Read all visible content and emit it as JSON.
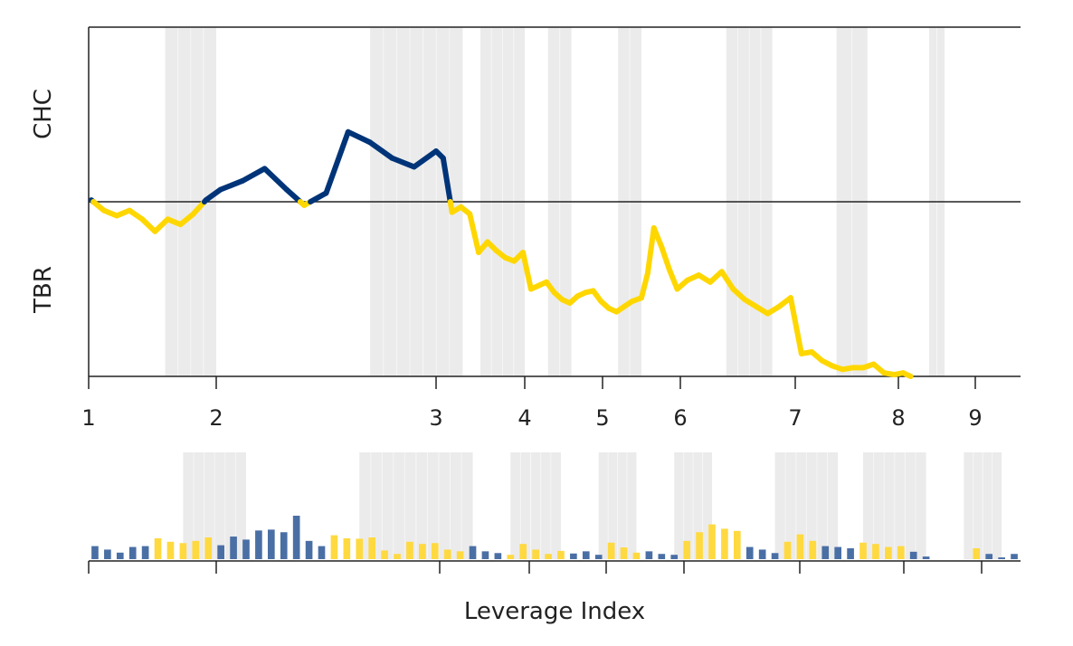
{
  "chart_data": [
    {
      "type": "line",
      "title": "",
      "xlabel": "",
      "y_category_labels": {
        "upper": "CHC",
        "lower": "TBR"
      },
      "x_ticks": [
        "1",
        "2",
        "3",
        "4",
        "5",
        "6",
        "7",
        "8",
        "9"
      ],
      "xlim": [
        1,
        9.45
      ],
      "ylim": [
        -1,
        1
      ],
      "baseline": 0,
      "grid": false,
      "legend": "none",
      "colors": {
        "above": "#003478",
        "below": "#FFD700",
        "shade": "#EBEBEB",
        "axis": "#222222"
      },
      "shaded_bands": [
        [
          1.6,
          2.0
        ],
        [
          2.7,
          3.3
        ],
        [
          3.5,
          4.0
        ],
        [
          4.3,
          4.6
        ],
        [
          5.2,
          5.5
        ],
        [
          6.4,
          6.8
        ],
        [
          7.4,
          7.7
        ],
        [
          8.4,
          8.6
        ]
      ],
      "series": [
        {
          "values": [
            [
              1.02,
              0.01
            ],
            [
              1.12,
              -0.05
            ],
            [
              1.22,
              -0.08
            ],
            [
              1.32,
              -0.05
            ],
            [
              1.42,
              -0.1
            ],
            [
              1.52,
              -0.17
            ],
            [
              1.62,
              -0.1
            ],
            [
              1.72,
              -0.13
            ],
            [
              1.82,
              -0.07
            ],
            [
              1.92,
              0.01
            ],
            [
              2.02,
              0.07
            ],
            [
              2.12,
              0.12
            ],
            [
              2.22,
              0.19
            ],
            [
              2.32,
              0.07
            ],
            [
              2.4,
              -0.02
            ],
            [
              2.5,
              0.05
            ],
            [
              2.6,
              0.4
            ],
            [
              2.7,
              0.34
            ],
            [
              2.8,
              0.25
            ],
            [
              2.9,
              0.2
            ],
            [
              3.0,
              0.29
            ],
            [
              3.08,
              0.25
            ],
            [
              3.18,
              -0.06
            ],
            [
              3.28,
              -0.03
            ],
            [
              3.38,
              -0.07
            ],
            [
              3.48,
              -0.29
            ],
            [
              3.58,
              -0.23
            ],
            [
              3.68,
              -0.28
            ],
            [
              3.78,
              -0.32
            ],
            [
              3.88,
              -0.34
            ],
            [
              3.98,
              -0.29
            ],
            [
              4.08,
              -0.5
            ],
            [
              4.18,
              -0.48
            ],
            [
              4.28,
              -0.46
            ],
            [
              4.38,
              -0.52
            ],
            [
              4.48,
              -0.56
            ],
            [
              4.58,
              -0.58
            ],
            [
              4.68,
              -0.54
            ],
            [
              4.78,
              -0.52
            ],
            [
              4.88,
              -0.51
            ],
            [
              4.98,
              -0.57
            ],
            [
              5.08,
              -0.61
            ],
            [
              5.18,
              -0.63
            ],
            [
              5.28,
              -0.6
            ],
            [
              5.38,
              -0.57
            ],
            [
              5.5,
              -0.55
            ],
            [
              5.58,
              -0.41
            ],
            [
              5.66,
              -0.15
            ],
            [
              5.76,
              -0.26
            ],
            [
              5.86,
              -0.39
            ],
            [
              5.96,
              -0.5
            ],
            [
              6.06,
              -0.45
            ],
            [
              6.16,
              -0.42
            ],
            [
              6.26,
              -0.46
            ],
            [
              6.36,
              -0.4
            ],
            [
              6.46,
              -0.5
            ],
            [
              6.56,
              -0.56
            ],
            [
              6.66,
              -0.6
            ],
            [
              6.76,
              -0.64
            ],
            [
              6.86,
              -0.6
            ],
            [
              6.96,
              -0.55
            ],
            [
              7.06,
              -0.87
            ],
            [
              7.16,
              -0.86
            ],
            [
              7.26,
              -0.91
            ],
            [
              7.36,
              -0.94
            ],
            [
              7.46,
              -0.96
            ],
            [
              7.56,
              -0.95
            ],
            [
              7.66,
              -0.95
            ],
            [
              7.76,
              -0.93
            ],
            [
              7.86,
              -0.98
            ],
            [
              7.96,
              -0.99
            ],
            [
              8.06,
              -0.98
            ],
            [
              8.16,
              -1.0
            ]
          ]
        }
      ]
    },
    {
      "type": "bar",
      "title": "",
      "xlabel": "Leverage Index",
      "x_tick_marks": 9,
      "x_tick_labels": [],
      "ylim": [
        0,
        1
      ],
      "grid": false,
      "legend": "none",
      "colors": {
        "above": "#4A6FA5",
        "below": "#FFD940",
        "shade": "#EBEBEB",
        "axis": "#222222"
      },
      "shaded_bands": [
        [
          8,
          12
        ],
        [
          22,
          30
        ],
        [
          34,
          37
        ],
        [
          41,
          43
        ],
        [
          47,
          49
        ],
        [
          55,
          59
        ],
        [
          62,
          66
        ],
        [
          70,
          72
        ]
      ],
      "series": [
        {
          "name": "",
          "categories": [
            1,
            2,
            3,
            4,
            5,
            6,
            7,
            8,
            9,
            10,
            11,
            12,
            13,
            14,
            15,
            16,
            17,
            18,
            19,
            20,
            21,
            22,
            23,
            24,
            25,
            26,
            27,
            28,
            29,
            30,
            31,
            32,
            33,
            34,
            35,
            36,
            37,
            38,
            39,
            40,
            41,
            42,
            43,
            44,
            45,
            46,
            47,
            48,
            49,
            50,
            51,
            52,
            53,
            54,
            55,
            56,
            57,
            58,
            59,
            60,
            61,
            62,
            63,
            64,
            65,
            66,
            67,
            68,
            69,
            70,
            71,
            72,
            73,
            74
          ],
          "values": [
            0.3,
            0.22,
            0.15,
            0.28,
            0.3,
            0.48,
            0.4,
            0.37,
            0.42,
            0.5,
            0.32,
            0.52,
            0.45,
            0.66,
            0.68,
            0.62,
            1.0,
            0.42,
            0.3,
            0.55,
            0.48,
            0.47,
            0.5,
            0.2,
            0.12,
            0.4,
            0.35,
            0.37,
            0.22,
            0.18,
            0.3,
            0.18,
            0.14,
            0.1,
            0.35,
            0.22,
            0.12,
            0.19,
            0.13,
            0.18,
            0.1,
            0.38,
            0.27,
            0.15,
            0.18,
            0.12,
            0.1,
            0.42,
            0.62,
            0.8,
            0.7,
            0.65,
            0.28,
            0.22,
            0.14,
            0.4,
            0.57,
            0.42,
            0.3,
            0.28,
            0.25,
            0.38,
            0.35,
            0.28,
            0.3,
            0.17,
            0.06,
            0.0,
            0.0,
            0.0,
            0.25,
            0.12,
            0.04,
            0.12
          ],
          "polarity": [
            "above",
            "above",
            "above",
            "above",
            "above",
            "below",
            "below",
            "below",
            "below",
            "below",
            "above",
            "above",
            "above",
            "above",
            "above",
            "above",
            "above",
            "above",
            "above",
            "below",
            "below",
            "below",
            "below",
            "below",
            "below",
            "below",
            "below",
            "below",
            "below",
            "below",
            "above",
            "above",
            "above",
            "below",
            "below",
            "below",
            "below",
            "below",
            "above",
            "above",
            "above",
            "below",
            "below",
            "below",
            "above",
            "above",
            "above",
            "below",
            "below",
            "below",
            "below",
            "below",
            "above",
            "above",
            "above",
            "below",
            "below",
            "below",
            "above",
            "above",
            "above",
            "below",
            "below",
            "below",
            "below",
            "above",
            "above",
            "above",
            "below",
            "below",
            "below",
            "above",
            "above",
            "above"
          ]
        }
      ]
    }
  ]
}
